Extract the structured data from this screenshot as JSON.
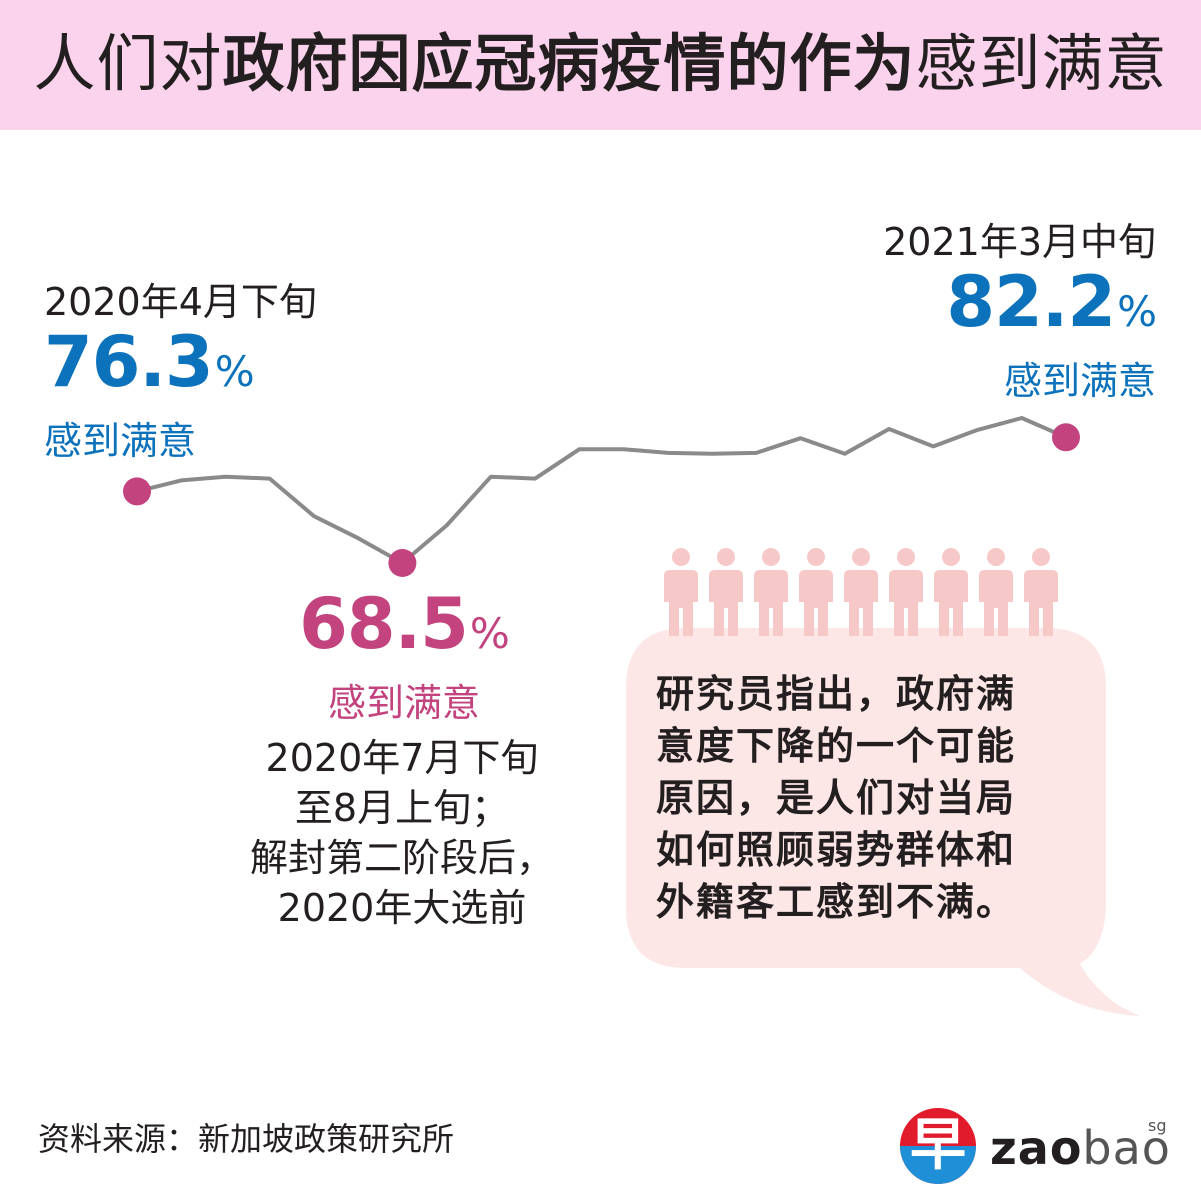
{
  "title": {
    "part1": "人们对",
    "part2": "政府因应冠病疫情的作为",
    "part3": "感到满意"
  },
  "callouts": {
    "start": {
      "period": "2020年4月下旬",
      "value": "76.3",
      "unit": "%",
      "label": "感到满意"
    },
    "low": {
      "value": "68.5",
      "unit": "%",
      "label": "感到满意"
    },
    "low_desc": [
      "2020年7月下旬",
      "至8月上旬；",
      "解封第二阶段后，",
      "2020年大选前"
    ],
    "end": {
      "period": "2021年3月中旬",
      "value": "82.2",
      "unit": "%",
      "label": "感到满意"
    }
  },
  "bubble": {
    "lines": [
      "研究员指出，政府满",
      "意度下降的一个可能",
      "原因，是人们对当局",
      "如何照顾弱势群体和",
      "外籍客工感到不满。"
    ]
  },
  "people_icon_count": 9,
  "source": "资料来源：新加坡政策研究所",
  "logo": {
    "glyph": "早",
    "word_bold": "zao",
    "word_light": "bao",
    "suffix": "sg"
  },
  "colors": {
    "header_bg": "#fbd3ec",
    "blue": "#0b72bb",
    "magenta": "#c2437e",
    "line": "#8a8a8a",
    "bubble_bg": "#fde6e6",
    "people": "#f6c8c8"
  },
  "chart_data": {
    "type": "line",
    "series": [
      {
        "values": [
          76.3,
          77.5,
          77.9,
          77.7,
          73.6,
          71.2,
          68.5,
          72.6,
          77.9,
          77.7,
          80.9,
          80.9,
          80.5,
          80.4,
          80.5,
          82.1,
          80.4,
          83.1,
          81.2,
          83.0,
          84.3,
          82.2
        ],
        "highlight_points": [
          {
            "index": 0,
            "value": 76.3
          },
          {
            "index": 6,
            "value": 68.5
          },
          {
            "index": 21,
            "value": 82.2
          }
        ]
      }
    ],
    "axes": "none",
    "grid": false,
    "legend": "none"
  }
}
